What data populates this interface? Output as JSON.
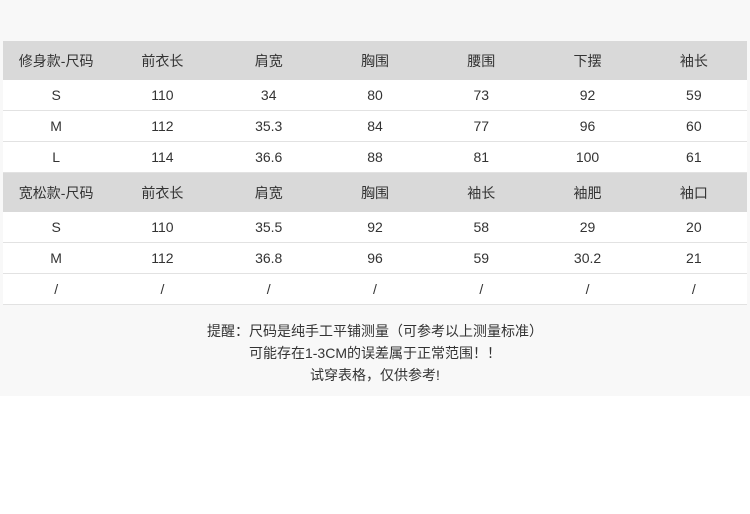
{
  "slim": {
    "headers": [
      "修身款-尺码",
      "前衣长",
      "肩宽",
      "胸围",
      "腰围",
      "下摆",
      "袖长"
    ],
    "rows": [
      [
        "S",
        "110",
        "34",
        "80",
        "73",
        "92",
        "59"
      ],
      [
        "M",
        "112",
        "35.3",
        "84",
        "77",
        "96",
        "60"
      ],
      [
        "L",
        "114",
        "36.6",
        "88",
        "81",
        "100",
        "61"
      ]
    ]
  },
  "loose": {
    "headers": [
      "宽松款-尺码",
      "前衣长",
      "肩宽",
      "胸围",
      "袖长",
      "袖肥",
      "袖口"
    ],
    "rows": [
      [
        "S",
        "110",
        "35.5",
        "92",
        "58",
        "29",
        "20"
      ],
      [
        "M",
        "112",
        "36.8",
        "96",
        "59",
        "30.2",
        "21"
      ],
      [
        "/",
        "/",
        "/",
        "/",
        "/",
        "/",
        "/"
      ]
    ]
  },
  "notes": [
    "提醒：尺码是纯手工平铺测量（可参考以上测量标准）",
    "可能存在1-3CM的误差属于正常范围！！",
    "试穿表格，仅供参考!"
  ],
  "colors": {
    "header_bg": "#d9d9d9",
    "text": "#333333"
  }
}
